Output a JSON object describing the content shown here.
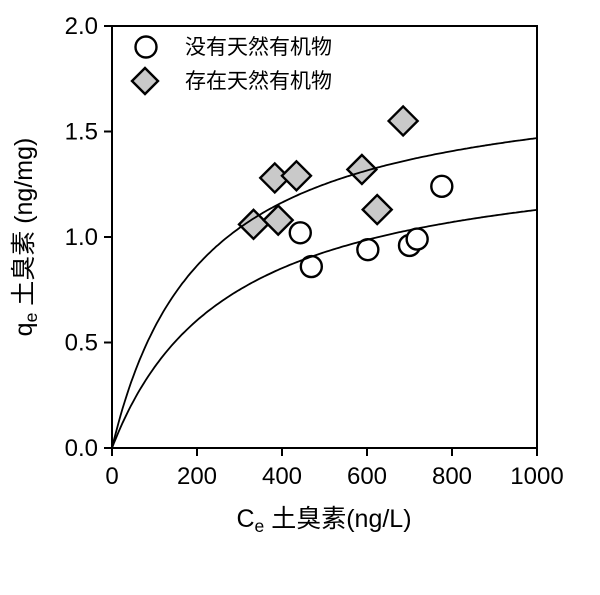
{
  "chart_data": {
    "type": "scatter",
    "title": "",
    "xlabel": {
      "prefix": "C",
      "sub": "e",
      "rest": " 土臭素(ng/L)"
    },
    "ylabel": {
      "prefix": "q",
      "sub": "e",
      "rest": " 土臭素 (ng/mg)"
    },
    "xlim": [
      0,
      1000
    ],
    "ylim": [
      0.0,
      2.0
    ],
    "x_ticks": {
      "values": [
        0,
        200,
        400,
        600,
        800,
        1000
      ],
      "labels": [
        "0",
        "200",
        "400",
        "600",
        "800",
        "1000"
      ]
    },
    "y_ticks": {
      "values": [
        0.0,
        0.5,
        1.0,
        1.5,
        2.0
      ],
      "labels": [
        "0.0",
        "0.5",
        "1.0",
        "1.5",
        "2.0"
      ]
    },
    "grid": false,
    "frame": "box",
    "legend_position": "top-left-inside",
    "series": [
      {
        "name": "没有天然有机物",
        "marker": "circle",
        "fill": "#ffffff",
        "stroke": "#000000",
        "points": [
          [
            443,
            1.02
          ],
          [
            469,
            0.86
          ],
          [
            602,
            0.94
          ],
          [
            700,
            0.96
          ],
          [
            718,
            0.99
          ],
          [
            776,
            1.24
          ]
        ],
        "fit_curve": {
          "model": "langmuir",
          "qmax": 1.44,
          "k": 276
        }
      },
      {
        "name": "存在天然有机物",
        "marker": "diamond",
        "fill": "#c9c9c9",
        "stroke": "#000000",
        "points": [
          [
            333,
            1.06
          ],
          [
            383,
            1.28
          ],
          [
            391,
            1.08
          ],
          [
            434,
            1.29
          ],
          [
            588,
            1.32
          ],
          [
            624,
            1.13
          ],
          [
            685,
            1.55
          ]
        ],
        "fit_curve": {
          "model": "langmuir",
          "qmax": 1.78,
          "k": 212
        }
      }
    ],
    "colors": {
      "axis": "#000000",
      "curve": "#000000",
      "diamond_fill": "#c9c9c9",
      "circle_fill": "#ffffff"
    }
  }
}
